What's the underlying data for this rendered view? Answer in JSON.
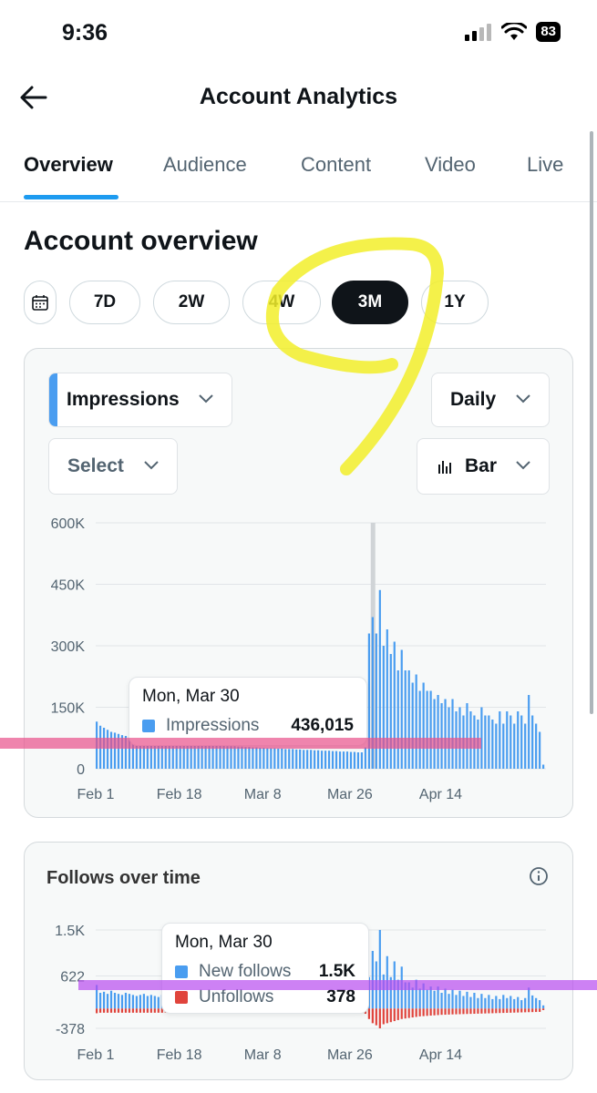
{
  "status": {
    "time": "9:36",
    "battery": "83"
  },
  "header": {
    "title": "Account Analytics"
  },
  "tabs": [
    "Overview",
    "Audience",
    "Content",
    "Video",
    "Live"
  ],
  "section_title": "Account overview",
  "ranges": {
    "options": [
      "7D",
      "2W",
      "4W",
      "3M",
      "1Y"
    ],
    "selected": "3M"
  },
  "impressions_card": {
    "metric_select": "Impressions",
    "interval_select": "Daily",
    "compare_select": "Select",
    "chart_type_select": "Bar",
    "tooltip": {
      "date": "Mon, Mar 30",
      "label": "Impressions",
      "value": "436,015"
    }
  },
  "follows_card": {
    "title": "Follows over time",
    "tooltip": {
      "date": "Mon, Mar 30",
      "new_label": "New follows",
      "new_value": "1.5K",
      "unf_label": "Unfollows",
      "unf_value": "378"
    }
  },
  "chart_data": [
    {
      "type": "bar",
      "title": "",
      "series": [
        {
          "name": "Impressions",
          "color": "#4a9df0",
          "values": [
            115000,
            105000,
            100000,
            95000,
            90000,
            88000,
            85000,
            82000,
            80000,
            78000,
            76000,
            74000,
            72000,
            70000,
            68000,
            70000,
            72000,
            70000,
            68000,
            66000,
            65000,
            64000,
            63000,
            62000,
            62000,
            61000,
            60000,
            60000,
            59000,
            59000,
            58000,
            58000,
            57000,
            57000,
            56000,
            56000,
            55000,
            55000,
            55000,
            54000,
            54000,
            53000,
            53000,
            52000,
            52000,
            51000,
            51000,
            50000,
            50000,
            50000,
            49000,
            49000,
            48000,
            48000,
            48000,
            47000,
            47000,
            46000,
            46000,
            46000,
            45000,
            45000,
            44000,
            44000,
            44000,
            43000,
            43000,
            42000,
            42000,
            42000,
            41000,
            41000,
            40000,
            40000,
            52000,
            330000,
            370000,
            330000,
            436000,
            300000,
            340000,
            280000,
            310000,
            240000,
            290000,
            240000,
            240000,
            210000,
            230000,
            190000,
            210000,
            190000,
            190000,
            170000,
            180000,
            160000,
            170000,
            150000,
            170000,
            140000,
            150000,
            130000,
            160000,
            140000,
            130000,
            120000,
            150000,
            130000,
            130000,
            120000,
            110000,
            140000,
            110000,
            140000,
            130000,
            110000,
            140000,
            130000,
            110000,
            180000,
            130000,
            110000,
            90000,
            10000
          ]
        }
      ],
      "x_tick_labels": [
        "Feb 1",
        "Feb 18",
        "Mar 8",
        "Mar 26",
        "Apr 14"
      ],
      "y_tick_labels": [
        "600K",
        "450K",
        "300K",
        "150K",
        "0"
      ],
      "ylim": [
        0,
        600000
      ],
      "grid": true
    },
    {
      "type": "bar",
      "title": "Follows over time",
      "series": [
        {
          "name": "New follows",
          "color": "#4a9df0",
          "values": [
            450,
            300,
            320,
            280,
            340,
            300,
            280,
            260,
            300,
            280,
            260,
            240,
            260,
            280,
            240,
            260,
            240,
            220,
            260,
            240,
            220,
            240,
            230,
            220,
            240,
            230,
            220,
            210,
            230,
            220,
            210,
            220,
            200,
            210,
            220,
            200,
            210,
            200,
            190,
            210,
            200,
            190,
            200,
            190,
            180,
            200,
            190,
            180,
            190,
            180,
            170,
            190,
            180,
            170,
            180,
            170,
            160,
            180,
            170,
            160,
            170,
            160,
            150,
            170,
            160,
            150,
            160,
            150,
            140,
            160,
            150,
            140,
            150,
            140,
            200,
            600,
            1100,
            900,
            1500,
            650,
            1000,
            600,
            900,
            550,
            800,
            500,
            500,
            400,
            550,
            380,
            480,
            360,
            420,
            340,
            420,
            300,
            380,
            280,
            360,
            260,
            340,
            240,
            320,
            220,
            300,
            200,
            280,
            200,
            260,
            180,
            240,
            180,
            260,
            200,
            240,
            180,
            220,
            160,
            200,
            400,
            250,
            200,
            160,
            60
          ]
        },
        {
          "name": "Unfollows",
          "color": "#e0443c",
          "values": [
            90,
            80,
            80,
            80,
            80,
            80,
            80,
            80,
            80,
            80,
            80,
            80,
            80,
            80,
            80,
            80,
            80,
            80,
            80,
            80,
            80,
            80,
            80,
            80,
            80,
            80,
            80,
            80,
            80,
            80,
            80,
            80,
            80,
            80,
            80,
            80,
            80,
            80,
            80,
            80,
            80,
            80,
            80,
            80,
            80,
            80,
            80,
            80,
            80,
            80,
            80,
            80,
            80,
            80,
            80,
            80,
            80,
            80,
            80,
            80,
            80,
            80,
            80,
            80,
            80,
            80,
            80,
            80,
            80,
            80,
            80,
            80,
            80,
            80,
            100,
            200,
            280,
            320,
            378,
            300,
            280,
            260,
            240,
            220,
            200,
            190,
            180,
            170,
            160,
            150,
            145,
            140,
            135,
            130,
            125,
            120,
            118,
            115,
            112,
            110,
            108,
            106,
            104,
            102,
            100,
            98,
            96,
            94,
            92,
            90,
            88,
            86,
            84,
            82,
            80,
            78,
            76,
            74,
            72,
            70,
            68,
            66,
            64,
            30
          ]
        }
      ],
      "x_tick_labels": [
        "Feb 1",
        "Feb 18",
        "Mar 8",
        "Mar 26",
        "Apr 14"
      ],
      "y_tick_labels": [
        "1.5K",
        "622",
        "-378"
      ],
      "ylim": [
        -378,
        1500
      ],
      "grid": true
    }
  ]
}
